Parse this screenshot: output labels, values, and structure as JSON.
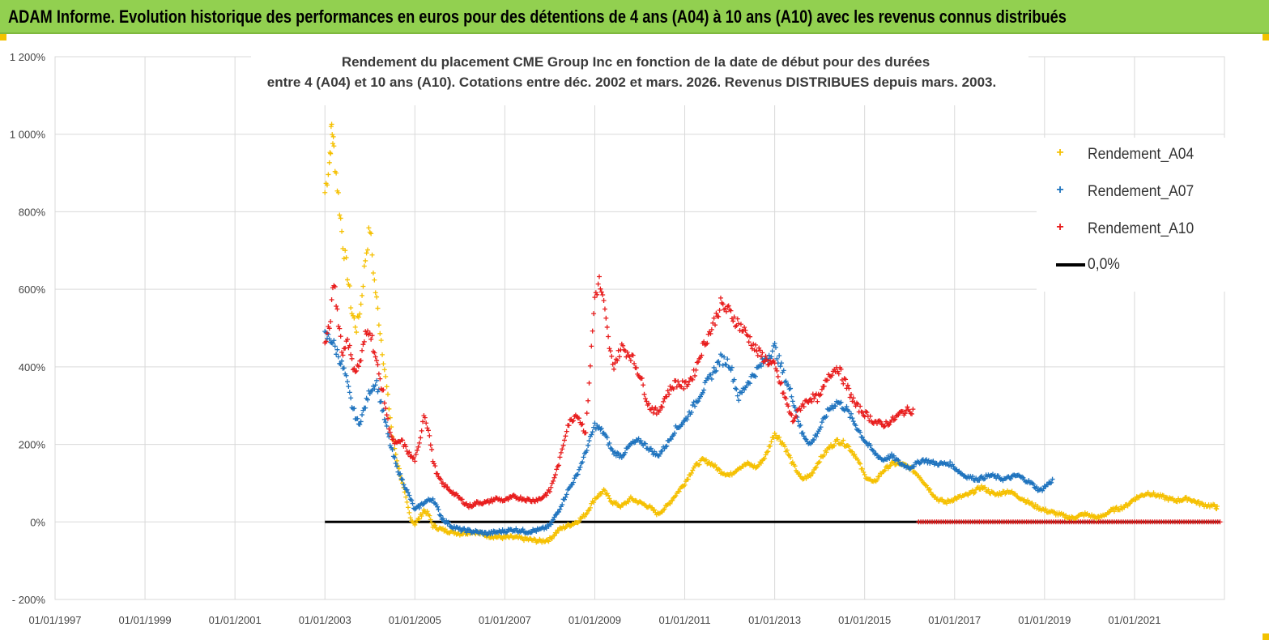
{
  "header": {
    "title": "ADAM Informe. Evolution historique des performances en euros pour des détentions de 4 ans (A04) à 10 ans (A10) avec les revenus connus distribués"
  },
  "chart_data": {
    "type": "scatter",
    "title_line1": "Rendement du placement CME Group Inc en fonction de la date de début pour des durées",
    "title_line2": "entre 4 (A04) et 10 ans (A10). Cotations entre déc. 2002 et mars. 2026. Revenus DISTRIBUES depuis mars. 2003.",
    "xlim": [
      1997.0,
      2023.0
    ],
    "ylim": [
      -200,
      1200
    ],
    "yticks": [
      {
        "v": 1200,
        "label": "1 200%"
      },
      {
        "v": 1000,
        "label": "1 000%"
      },
      {
        "v": 800,
        "label": "800%"
      },
      {
        "v": 600,
        "label": "600%"
      },
      {
        "v": 400,
        "label": "400%"
      },
      {
        "v": 200,
        "label": "200%"
      },
      {
        "v": 0,
        "label": "0%"
      },
      {
        "v": -200,
        "label": "- 200%"
      }
    ],
    "xticks": [
      {
        "v": 1997,
        "label": "01/01/1997"
      },
      {
        "v": 1999,
        "label": "01/01/1999"
      },
      {
        "v": 2001,
        "label": "01/01/2001"
      },
      {
        "v": 2003,
        "label": "01/01/2003"
      },
      {
        "v": 2005,
        "label": "01/01/2005"
      },
      {
        "v": 2007,
        "label": "01/01/2007"
      },
      {
        "v": 2009,
        "label": "01/01/2009"
      },
      {
        "v": 2011,
        "label": "01/01/2011"
      },
      {
        "v": 2013,
        "label": "01/01/2013"
      },
      {
        "v": 2015,
        "label": "01/01/2015"
      },
      {
        "v": 2017,
        "label": "01/01/2017"
      },
      {
        "v": 2019,
        "label": "01/01/2019"
      },
      {
        "v": 2021,
        "label": "01/01/2021"
      }
    ],
    "series": [
      {
        "name": "Rendement_A04",
        "color": "#f5c000",
        "marker": "+",
        "points": [
          [
            2003.0,
            850
          ],
          [
            2003.1,
            930
          ],
          [
            2003.15,
            1020
          ],
          [
            2003.2,
            960
          ],
          [
            2003.3,
            840
          ],
          [
            2003.4,
            720
          ],
          [
            2003.5,
            640
          ],
          [
            2003.6,
            540
          ],
          [
            2003.7,
            500
          ],
          [
            2003.8,
            560
          ],
          [
            2003.9,
            680
          ],
          [
            2004.0,
            760
          ],
          [
            2004.1,
            620
          ],
          [
            2004.2,
            520
          ],
          [
            2004.3,
            420
          ],
          [
            2004.4,
            320
          ],
          [
            2004.5,
            220
          ],
          [
            2004.6,
            160
          ],
          [
            2004.7,
            110
          ],
          [
            2004.8,
            60
          ],
          [
            2004.9,
            10
          ],
          [
            2005.0,
            -5
          ],
          [
            2005.1,
            10
          ],
          [
            2005.2,
            30
          ],
          [
            2005.3,
            20
          ],
          [
            2005.4,
            -10
          ],
          [
            2005.6,
            -20
          ],
          [
            2005.8,
            -25
          ],
          [
            2006.0,
            -30
          ],
          [
            2006.3,
            -25
          ],
          [
            2006.6,
            -35
          ],
          [
            2006.9,
            -40
          ],
          [
            2007.2,
            -40
          ],
          [
            2007.5,
            -45
          ],
          [
            2007.8,
            -50
          ],
          [
            2008.0,
            -45
          ],
          [
            2008.2,
            -20
          ],
          [
            2008.4,
            -10
          ],
          [
            2008.6,
            0
          ],
          [
            2008.8,
            20
          ],
          [
            2009.0,
            60
          ],
          [
            2009.2,
            80
          ],
          [
            2009.4,
            50
          ],
          [
            2009.6,
            40
          ],
          [
            2009.8,
            60
          ],
          [
            2010.0,
            50
          ],
          [
            2010.2,
            40
          ],
          [
            2010.4,
            20
          ],
          [
            2010.6,
            40
          ],
          [
            2010.8,
            70
          ],
          [
            2011.0,
            100
          ],
          [
            2011.2,
            140
          ],
          [
            2011.4,
            160
          ],
          [
            2011.6,
            150
          ],
          [
            2011.8,
            130
          ],
          [
            2012.0,
            120
          ],
          [
            2012.2,
            140
          ],
          [
            2012.4,
            150
          ],
          [
            2012.6,
            140
          ],
          [
            2012.8,
            170
          ],
          [
            2013.0,
            230
          ],
          [
            2013.2,
            200
          ],
          [
            2013.4,
            150
          ],
          [
            2013.6,
            110
          ],
          [
            2013.8,
            120
          ],
          [
            2014.0,
            160
          ],
          [
            2014.2,
            190
          ],
          [
            2014.4,
            210
          ],
          [
            2014.6,
            200
          ],
          [
            2014.8,
            170
          ],
          [
            2015.0,
            120
          ],
          [
            2015.2,
            100
          ],
          [
            2015.4,
            130
          ],
          [
            2015.6,
            150
          ],
          [
            2015.8,
            150
          ],
          [
            2016.0,
            140
          ],
          [
            2016.2,
            120
          ],
          [
            2016.4,
            90
          ],
          [
            2016.6,
            60
          ],
          [
            2016.8,
            50
          ],
          [
            2017.0,
            60
          ],
          [
            2017.3,
            70
          ],
          [
            2017.6,
            90
          ],
          [
            2017.9,
            70
          ],
          [
            2018.2,
            80
          ],
          [
            2018.5,
            60
          ],
          [
            2018.8,
            40
          ],
          [
            2019.0,
            30
          ],
          [
            2019.3,
            20
          ],
          [
            2019.6,
            10
          ],
          [
            2019.9,
            20
          ],
          [
            2020.2,
            10
          ],
          [
            2020.5,
            30
          ],
          [
            2020.8,
            40
          ],
          [
            2021.0,
            60
          ],
          [
            2021.3,
            75
          ],
          [
            2021.6,
            65
          ],
          [
            2021.9,
            55
          ],
          [
            2022.2,
            60
          ],
          [
            2022.5,
            45
          ],
          [
            2022.8,
            40
          ],
          [
            2022.85,
            35
          ]
        ]
      },
      {
        "name": "Rendement_A07",
        "color": "#1e73be",
        "marker": "+",
        "points": [
          [
            2003.0,
            480
          ],
          [
            2003.15,
            470
          ],
          [
            2003.3,
            430
          ],
          [
            2003.45,
            380
          ],
          [
            2003.6,
            300
          ],
          [
            2003.75,
            250
          ],
          [
            2003.9,
            300
          ],
          [
            2004.0,
            340
          ],
          [
            2004.15,
            360
          ],
          [
            2004.3,
            280
          ],
          [
            2004.45,
            200
          ],
          [
            2004.6,
            140
          ],
          [
            2004.75,
            100
          ],
          [
            2004.9,
            60
          ],
          [
            2005.0,
            30
          ],
          [
            2005.2,
            50
          ],
          [
            2005.4,
            60
          ],
          [
            2005.6,
            10
          ],
          [
            2005.8,
            -10
          ],
          [
            2006.0,
            -20
          ],
          [
            2006.3,
            -25
          ],
          [
            2006.6,
            -30
          ],
          [
            2006.9,
            -25
          ],
          [
            2007.2,
            -20
          ],
          [
            2007.5,
            -25
          ],
          [
            2007.8,
            -20
          ],
          [
            2008.0,
            -10
          ],
          [
            2008.2,
            30
          ],
          [
            2008.4,
            80
          ],
          [
            2008.6,
            120
          ],
          [
            2008.8,
            180
          ],
          [
            2009.0,
            250
          ],
          [
            2009.2,
            230
          ],
          [
            2009.4,
            180
          ],
          [
            2009.6,
            170
          ],
          [
            2009.8,
            200
          ],
          [
            2010.0,
            210
          ],
          [
            2010.2,
            190
          ],
          [
            2010.4,
            170
          ],
          [
            2010.6,
            200
          ],
          [
            2010.8,
            240
          ],
          [
            2011.0,
            260
          ],
          [
            2011.2,
            300
          ],
          [
            2011.4,
            340
          ],
          [
            2011.6,
            380
          ],
          [
            2011.8,
            420
          ],
          [
            2012.0,
            410
          ],
          [
            2012.2,
            320
          ],
          [
            2012.4,
            360
          ],
          [
            2012.6,
            390
          ],
          [
            2012.8,
            420
          ],
          [
            2013.0,
            450
          ],
          [
            2013.2,
            380
          ],
          [
            2013.4,
            320
          ],
          [
            2013.6,
            230
          ],
          [
            2013.8,
            200
          ],
          [
            2014.0,
            240
          ],
          [
            2014.2,
            290
          ],
          [
            2014.4,
            310
          ],
          [
            2014.6,
            290
          ],
          [
            2014.8,
            250
          ],
          [
            2015.0,
            210
          ],
          [
            2015.2,
            180
          ],
          [
            2015.4,
            160
          ],
          [
            2015.6,
            170
          ],
          [
            2015.8,
            150
          ],
          [
            2016.0,
            140
          ],
          [
            2016.3,
            160
          ],
          [
            2016.6,
            150
          ],
          [
            2016.9,
            150
          ],
          [
            2017.2,
            120
          ],
          [
            2017.5,
            110
          ],
          [
            2017.8,
            120
          ],
          [
            2018.1,
            110
          ],
          [
            2018.4,
            120
          ],
          [
            2018.7,
            100
          ],
          [
            2018.9,
            80
          ],
          [
            2019.1,
            100
          ],
          [
            2019.2,
            110
          ]
        ]
      },
      {
        "name": "Rendement_A10",
        "color": "#e81c1c",
        "marker": "+",
        "points": [
          [
            2003.0,
            460
          ],
          [
            2003.1,
            500
          ],
          [
            2003.2,
            620
          ],
          [
            2003.3,
            520
          ],
          [
            2003.4,
            430
          ],
          [
            2003.5,
            480
          ],
          [
            2003.6,
            410
          ],
          [
            2003.7,
            390
          ],
          [
            2003.8,
            420
          ],
          [
            2003.9,
            480
          ],
          [
            2004.0,
            500
          ],
          [
            2004.1,
            440
          ],
          [
            2004.2,
            380
          ],
          [
            2004.3,
            330
          ],
          [
            2004.4,
            260
          ],
          [
            2004.5,
            210
          ],
          [
            2004.6,
            200
          ],
          [
            2004.7,
            210
          ],
          [
            2004.8,
            190
          ],
          [
            2004.9,
            170
          ],
          [
            2005.0,
            160
          ],
          [
            2005.1,
            200
          ],
          [
            2005.2,
            280
          ],
          [
            2005.3,
            240
          ],
          [
            2005.4,
            160
          ],
          [
            2005.5,
            120
          ],
          [
            2005.6,
            100
          ],
          [
            2005.8,
            80
          ],
          [
            2006.0,
            60
          ],
          [
            2006.2,
            40
          ],
          [
            2006.4,
            50
          ],
          [
            2006.6,
            50
          ],
          [
            2006.8,
            60
          ],
          [
            2007.0,
            55
          ],
          [
            2007.2,
            65
          ],
          [
            2007.4,
            60
          ],
          [
            2007.6,
            55
          ],
          [
            2007.8,
            60
          ],
          [
            2008.0,
            80
          ],
          [
            2008.2,
            150
          ],
          [
            2008.4,
            250
          ],
          [
            2008.6,
            280
          ],
          [
            2008.8,
            230
          ],
          [
            2009.0,
            580
          ],
          [
            2009.1,
            620
          ],
          [
            2009.2,
            560
          ],
          [
            2009.3,
            470
          ],
          [
            2009.4,
            400
          ],
          [
            2009.6,
            450
          ],
          [
            2009.8,
            430
          ],
          [
            2010.0,
            380
          ],
          [
            2010.2,
            300
          ],
          [
            2010.4,
            280
          ],
          [
            2010.6,
            330
          ],
          [
            2010.8,
            360
          ],
          [
            2011.0,
            350
          ],
          [
            2011.2,
            380
          ],
          [
            2011.4,
            450
          ],
          [
            2011.6,
            500
          ],
          [
            2011.8,
            560
          ],
          [
            2012.0,
            540
          ],
          [
            2012.2,
            510
          ],
          [
            2012.4,
            480
          ],
          [
            2012.6,
            440
          ],
          [
            2012.8,
            420
          ],
          [
            2013.0,
            400
          ],
          [
            2013.2,
            330
          ],
          [
            2013.4,
            260
          ],
          [
            2013.6,
            300
          ],
          [
            2013.8,
            320
          ],
          [
            2014.0,
            320
          ],
          [
            2014.2,
            380
          ],
          [
            2014.4,
            400
          ],
          [
            2014.6,
            350
          ],
          [
            2014.8,
            300
          ],
          [
            2015.0,
            280
          ],
          [
            2015.2,
            260
          ],
          [
            2015.4,
            250
          ],
          [
            2015.6,
            260
          ],
          [
            2015.8,
            280
          ],
          [
            2016.0,
            290
          ],
          [
            2016.1,
            285
          ]
        ]
      },
      {
        "name": "0,0%",
        "color": "#000000",
        "marker": "line",
        "points": [
          [
            2003.0,
            0
          ],
          [
            2022.9,
            0
          ]
        ]
      }
    ],
    "red_zero_band": {
      "x_start": 2016.2,
      "x_end": 2022.9,
      "value": 0
    },
    "legend_position": "top-right"
  }
}
